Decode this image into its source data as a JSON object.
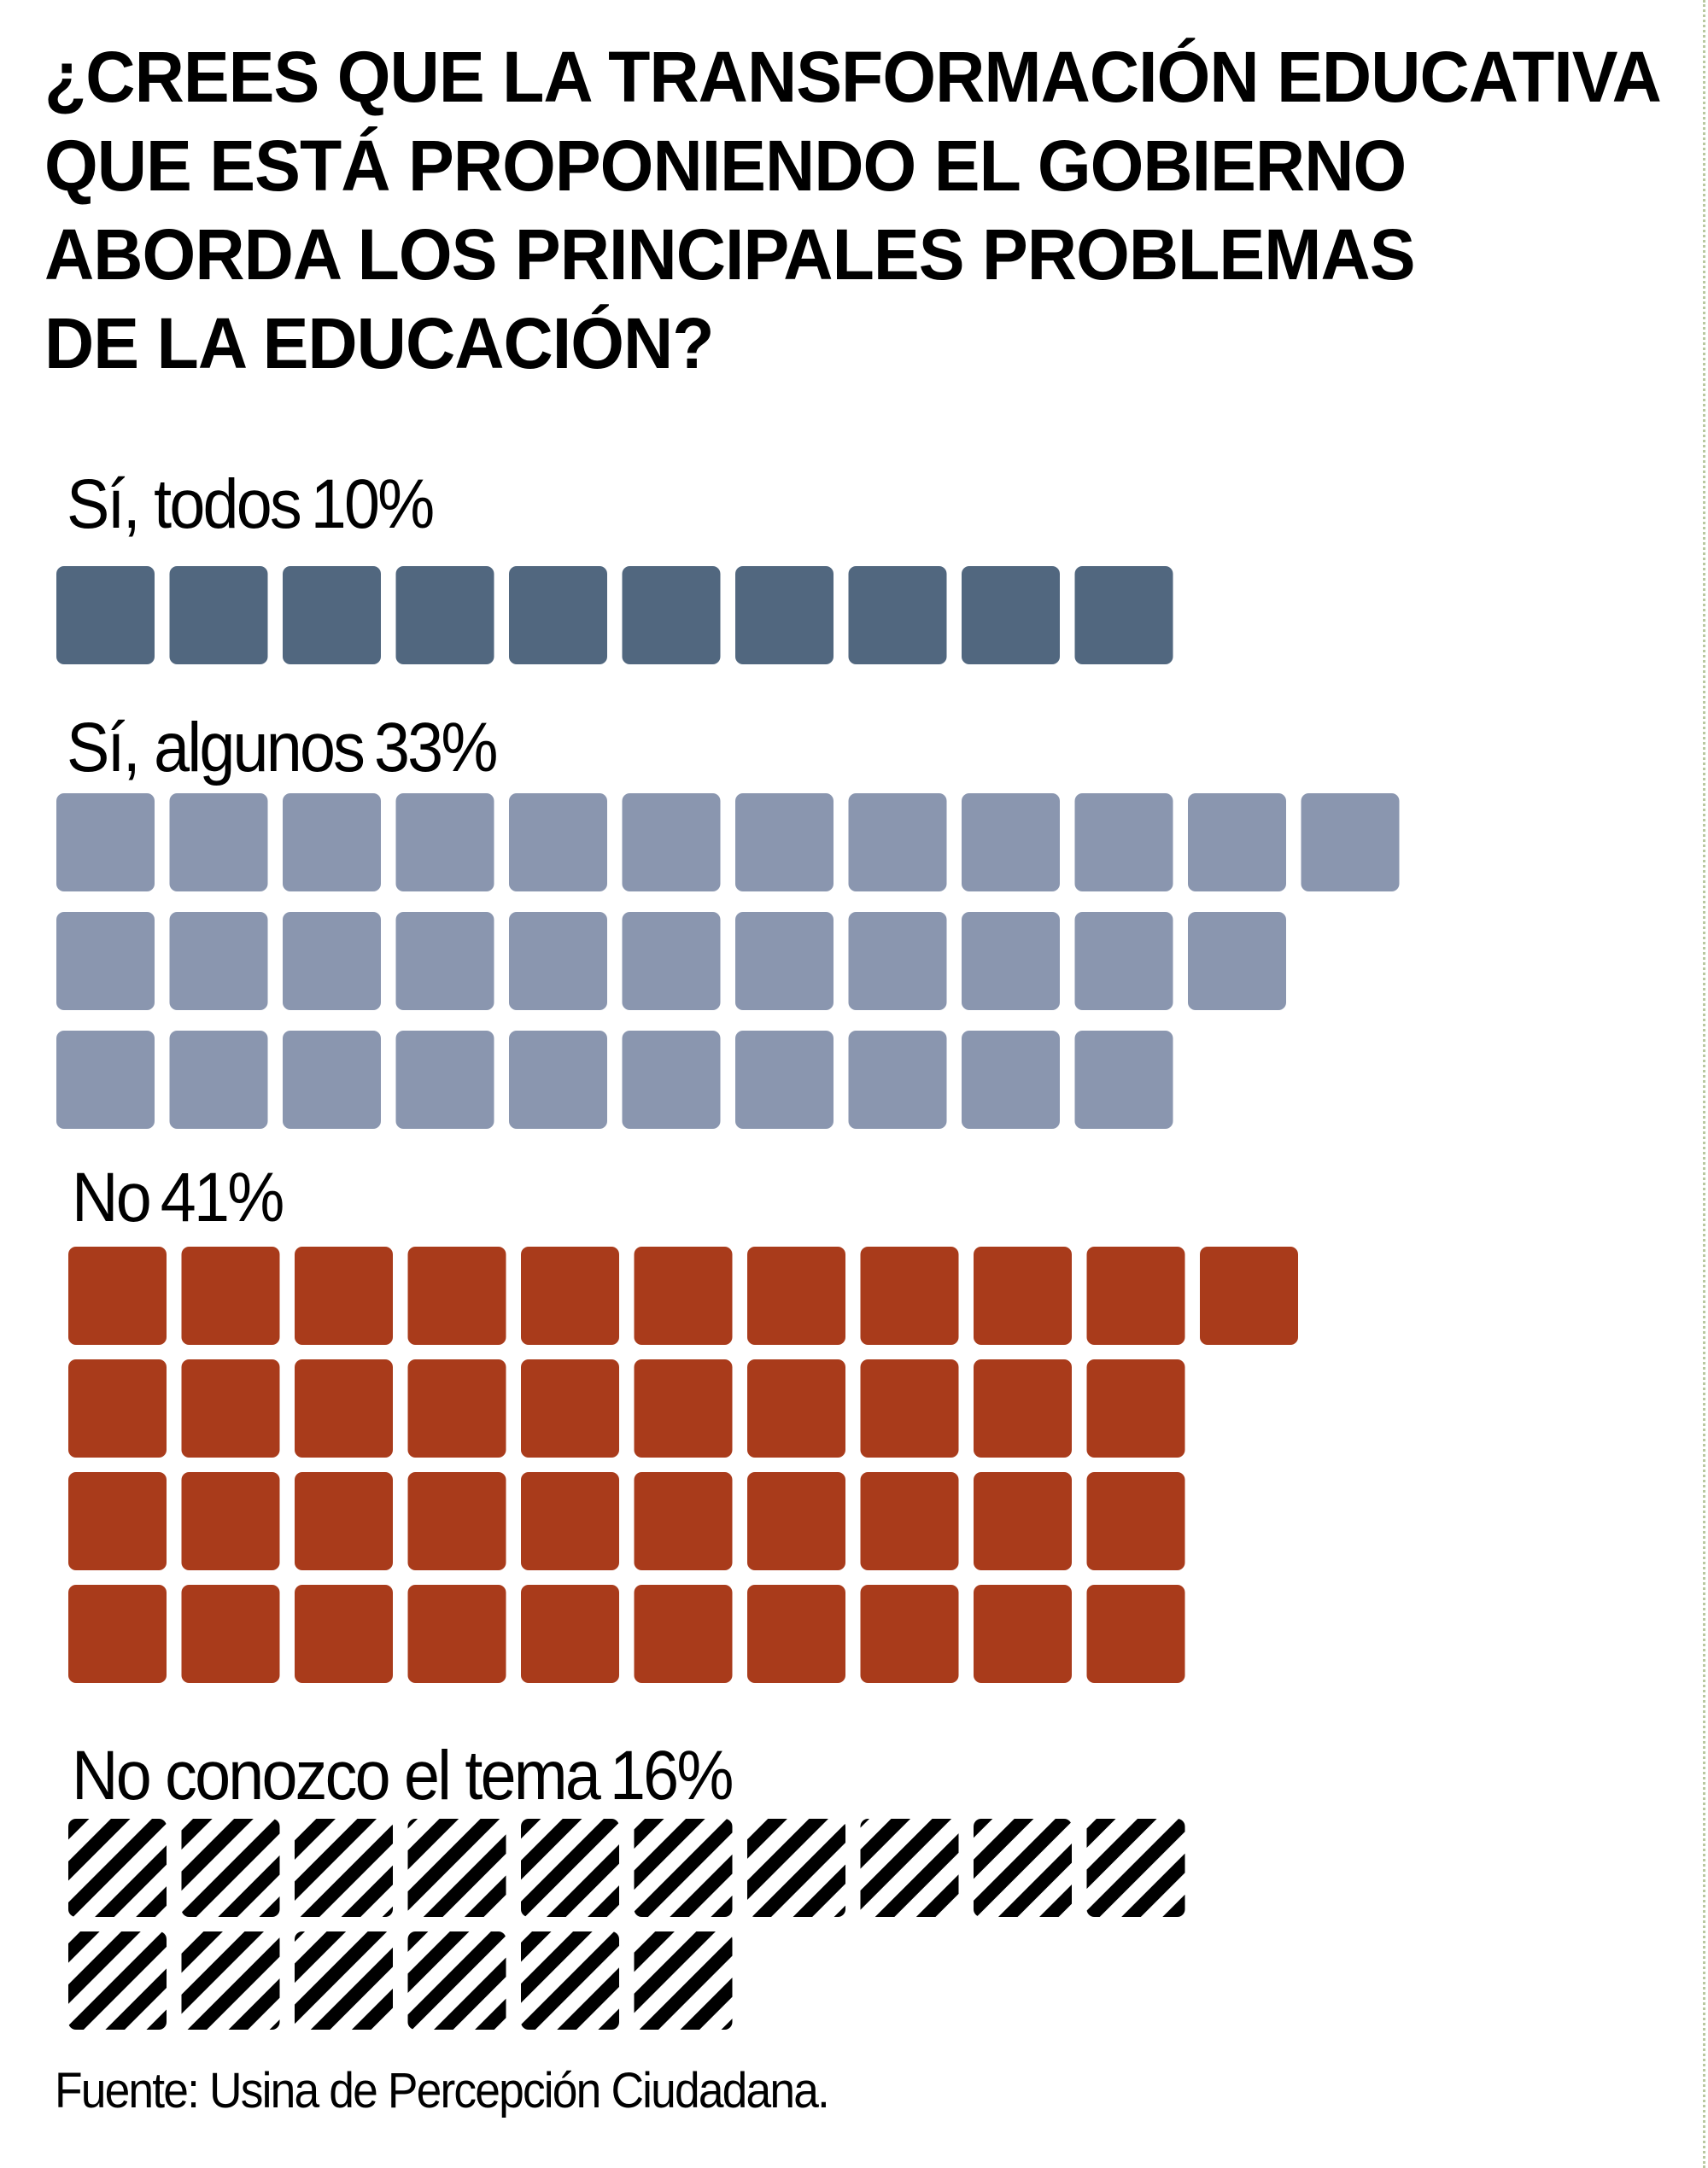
{
  "title_lines": [
    "¿CREES QUE LA TRANSFORMACIÓN EDUCATIVA",
    "QUE ESTÁ PROPONIENDO EL GOBIERNO",
    "ABORDA LOS PRINCIPALES PROBLEMAS",
    "DE LA EDUCACIÓN?"
  ],
  "source": "Fuente: Usina de Percepción Ciudadana.",
  "colors": {
    "si_todos": "#51677f",
    "si_algunos": "#8a96af",
    "no": "#a93b1b",
    "no_conozco": "hatched black"
  },
  "chart_data": {
    "type": "waffle",
    "title": "¿CREES QUE LA TRANSFORMACIÓN EDUCATIVA QUE ESTÁ PROPONIENDO EL GOBIERNO ABORDA LOS PRINCIPALES PROBLEMAS DE LA EDUCACIÓN?",
    "unit": "1 square = 1%",
    "categories": [
      {
        "label": "Sí, todos",
        "percent_label": "10%",
        "value": 10,
        "rows": [
          10
        ]
      },
      {
        "label": "Sí, algunos",
        "percent_label": "33%",
        "value": 33,
        "rows": [
          12,
          11,
          10
        ]
      },
      {
        "label": "No",
        "percent_label": "41%",
        "value": 41,
        "rows": [
          11,
          10,
          10,
          10
        ]
      },
      {
        "label": "No conozco el tema",
        "percent_label": "16%",
        "value": 16,
        "rows": [
          10,
          6
        ]
      }
    ]
  }
}
